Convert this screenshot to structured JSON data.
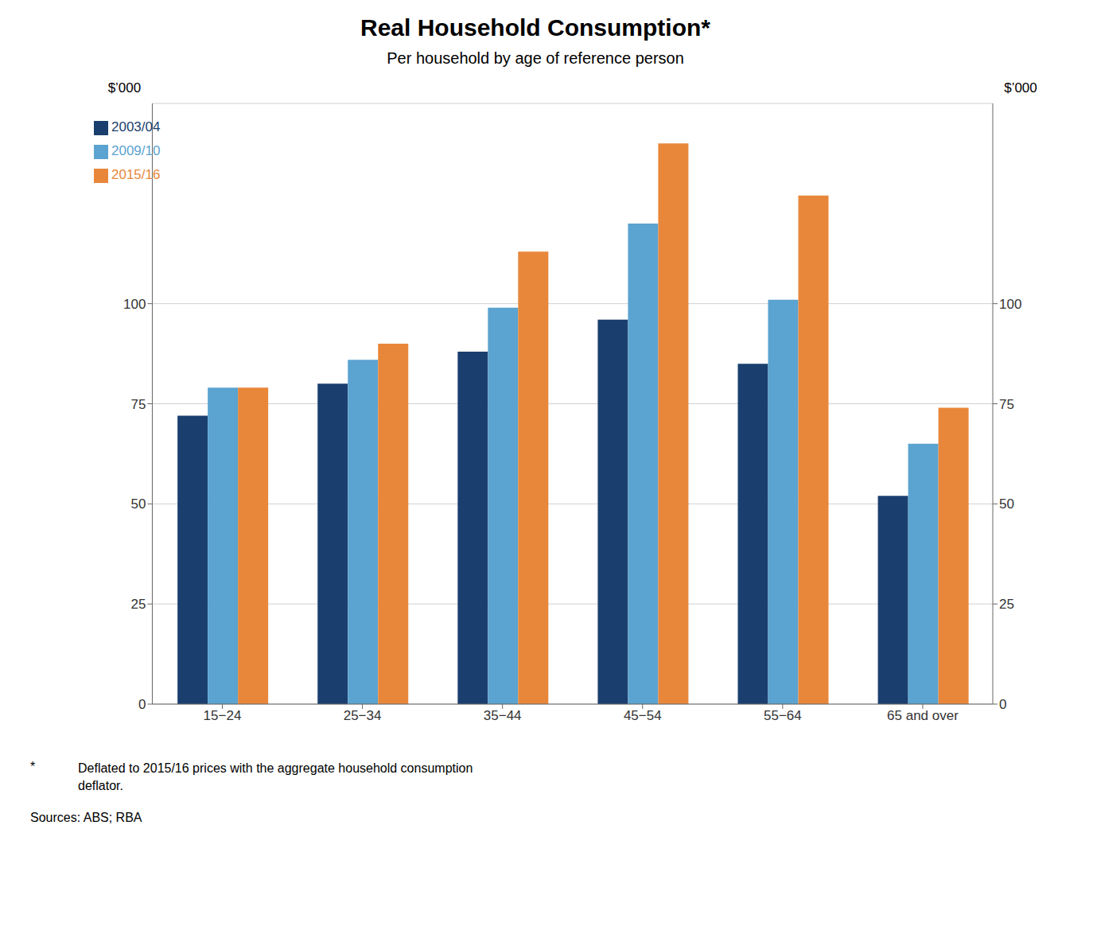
{
  "chart_data": {
    "type": "bar",
    "title": "Real Household Consumption*",
    "subtitle": "Per household by age of reference person",
    "ylabel": "$’000",
    "y2label": "$’000",
    "categories": [
      "15−24",
      "25−34",
      "35−44",
      "45−54",
      "55−64",
      "65 and over"
    ],
    "series": [
      {
        "name": "2003/04",
        "color": "#1a3f6f",
        "values": [
          72,
          80,
          88,
          96,
          85,
          52
        ]
      },
      {
        "name": "2009/10",
        "color": "#5ba3d0",
        "values": [
          79,
          86,
          99,
          120,
          101,
          65
        ]
      },
      {
        "name": "2015/16",
        "color": "#e8873a",
        "values": [
          79,
          90,
          113,
          140,
          127,
          74
        ]
      }
    ],
    "ylim": [
      0,
      150
    ],
    "yticks": [
      0,
      25,
      50,
      75,
      100
    ],
    "y2lim": [
      0,
      150
    ],
    "y2ticks": [
      0,
      25,
      50,
      75,
      100
    ],
    "grid": true,
    "legend": "upper left",
    "footnote_mark": "*",
    "footnote": "Deflated to 2015/16 prices with the aggregate household consumption\ndeflator.",
    "source": "Sources: ABS; RBA"
  }
}
